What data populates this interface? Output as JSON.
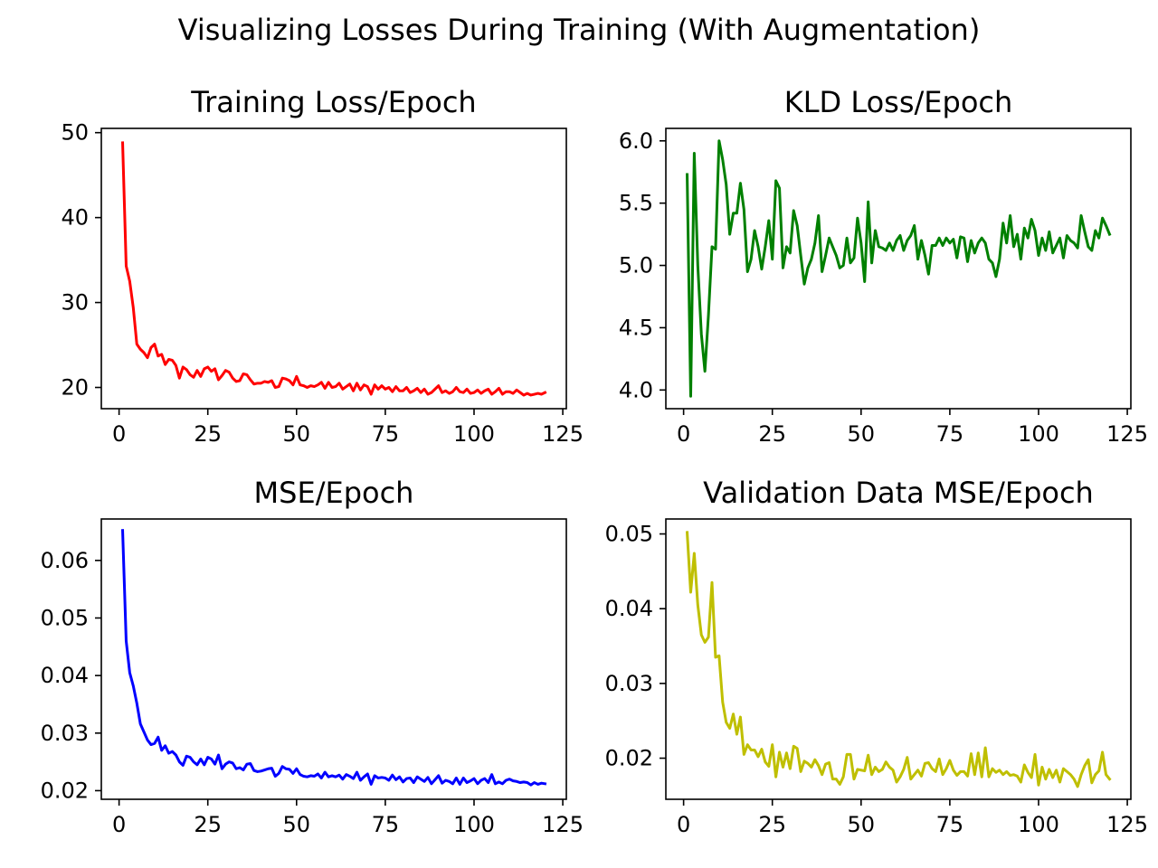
{
  "figure_title": "Visualizing Losses During Training (With Augmentation)",
  "chart_data": [
    {
      "type": "line",
      "title": "Training Loss/Epoch",
      "xlabel": "",
      "ylabel": "",
      "color": "#ff0000",
      "xlim": [
        -5,
        126
      ],
      "ylim": [
        17.5,
        50.5
      ],
      "xticks": [
        0,
        25,
        50,
        75,
        100,
        125
      ],
      "xtick_labels": [
        "0",
        "25",
        "50",
        "75",
        "100",
        "125"
      ],
      "yticks": [
        20,
        30,
        40,
        50
      ],
      "ytick_labels": [
        "20",
        "30",
        "40",
        "50"
      ],
      "grid": false,
      "series": [
        {
          "x": [
            1,
            2,
            3,
            4,
            5,
            6,
            7,
            8,
            9,
            10,
            11,
            12,
            13,
            14,
            15,
            16,
            17,
            18,
            19,
            20,
            21,
            22,
            23,
            24,
            25,
            26,
            27,
            28,
            29,
            30,
            31,
            32,
            33,
            34,
            35,
            36,
            37,
            38,
            39,
            40,
            41,
            42,
            43,
            44,
            45,
            46,
            47,
            48,
            49,
            50,
            51,
            52,
            53,
            54,
            55,
            56,
            57,
            58,
            59,
            60,
            61,
            62,
            63,
            64,
            65,
            66,
            67,
            68,
            69,
            70,
            71,
            72,
            73,
            74,
            75,
            76,
            77,
            78,
            79,
            80,
            81,
            82,
            83,
            84,
            85,
            86,
            87,
            88,
            89,
            90,
            91,
            92,
            93,
            94,
            95,
            96,
            97,
            98,
            99,
            100,
            101,
            102,
            103,
            104,
            105,
            106,
            107,
            108,
            109,
            110,
            111,
            112,
            113,
            114,
            115,
            116,
            117,
            118,
            119,
            120
          ],
          "y": [
            48.8,
            34.3,
            32.5,
            29.4,
            25.1,
            24.5,
            24.1,
            23.5,
            24.7,
            25.1,
            23.7,
            23.9,
            22.7,
            23.3,
            23.2,
            22.6,
            21.1,
            22.4,
            22.1,
            21.5,
            21.2,
            22.0,
            21.3,
            22.2,
            22.4,
            21.9,
            22.2,
            20.9,
            21.4,
            22.0,
            21.8,
            21.1,
            20.7,
            20.8,
            21.6,
            21.5,
            20.9,
            20.4,
            20.5,
            20.5,
            20.7,
            20.6,
            20.8,
            20.0,
            20.1,
            21.1,
            21.0,
            20.8,
            20.3,
            21.3,
            20.3,
            20.2,
            20.0,
            20.2,
            20.1,
            20.3,
            20.6,
            19.9,
            20.6,
            20.0,
            20.1,
            20.5,
            19.8,
            20.1,
            20.4,
            19.6,
            20.5,
            19.7,
            20.3,
            20.1,
            19.2,
            20.3,
            19.8,
            20.2,
            19.8,
            20.0,
            19.5,
            20.1,
            19.6,
            19.6,
            20.0,
            19.4,
            19.6,
            19.9,
            19.4,
            19.8,
            19.2,
            19.4,
            19.8,
            20.2,
            19.4,
            19.6,
            19.3,
            19.5,
            20.0,
            19.5,
            19.4,
            19.8,
            19.3,
            19.4,
            19.7,
            19.3,
            19.6,
            19.8,
            19.2,
            19.5,
            19.9,
            19.2,
            19.5,
            19.5,
            19.3,
            19.7,
            19.4,
            19.1,
            19.3,
            19.1,
            19.2,
            19.3,
            19.2,
            19.4
          ]
        }
      ]
    },
    {
      "type": "line",
      "title": "KLD Loss/Epoch",
      "xlabel": "",
      "ylabel": "",
      "color": "#008000",
      "xlim": [
        -5,
        126
      ],
      "ylim": [
        3.85,
        6.1
      ],
      "xticks": [
        0,
        25,
        50,
        75,
        100,
        125
      ],
      "xtick_labels": [
        "0",
        "25",
        "50",
        "75",
        "100",
        "125"
      ],
      "yticks": [
        4.0,
        4.5,
        5.0,
        5.5,
        6.0
      ],
      "ytick_labels": [
        "4.0",
        "4.5",
        "5.0",
        "5.5",
        "6.0"
      ],
      "grid": false,
      "series": [
        {
          "x": [
            1,
            2,
            3,
            4,
            5,
            6,
            7,
            8,
            9,
            10,
            11,
            12,
            13,
            14,
            15,
            16,
            17,
            18,
            19,
            20,
            21,
            22,
            23,
            24,
            25,
            26,
            27,
            28,
            29,
            30,
            31,
            32,
            33,
            34,
            35,
            36,
            37,
            38,
            39,
            40,
            41,
            42,
            43,
            44,
            45,
            46,
            47,
            48,
            49,
            50,
            51,
            52,
            53,
            54,
            55,
            56,
            57,
            58,
            59,
            60,
            61,
            62,
            63,
            64,
            65,
            66,
            67,
            68,
            69,
            70,
            71,
            72,
            73,
            74,
            75,
            76,
            77,
            78,
            79,
            80,
            81,
            82,
            83,
            84,
            85,
            86,
            87,
            88,
            89,
            90,
            91,
            92,
            93,
            94,
            95,
            96,
            97,
            98,
            99,
            100,
            101,
            102,
            103,
            104,
            105,
            106,
            107,
            108,
            109,
            110,
            111,
            112,
            113,
            114,
            115,
            116,
            117,
            118,
            119,
            120
          ],
          "y": [
            5.73,
            3.95,
            5.9,
            5.0,
            4.45,
            4.15,
            4.6,
            5.15,
            5.13,
            6.0,
            5.85,
            5.65,
            5.25,
            5.42,
            5.42,
            5.66,
            5.45,
            4.95,
            5.05,
            5.28,
            5.15,
            4.97,
            5.15,
            5.36,
            5.05,
            5.68,
            5.62,
            4.98,
            5.15,
            5.1,
            5.44,
            5.32,
            5.08,
            4.85,
            4.98,
            5.05,
            5.18,
            5.4,
            4.95,
            5.08,
            5.22,
            5.15,
            5.08,
            4.98,
            5.0,
            5.22,
            5.02,
            5.06,
            5.38,
            5.18,
            4.87,
            5.51,
            5.02,
            5.28,
            5.15,
            5.14,
            5.12,
            5.18,
            5.12,
            5.2,
            5.24,
            5.12,
            5.2,
            5.24,
            5.32,
            5.05,
            5.2,
            5.08,
            4.93,
            5.16,
            5.16,
            5.22,
            5.16,
            5.22,
            5.18,
            5.21,
            5.06,
            5.23,
            5.22,
            5.03,
            5.2,
            5.1,
            5.18,
            5.22,
            5.18,
            5.05,
            5.02,
            4.91,
            5.05,
            5.34,
            5.18,
            5.4,
            5.15,
            5.25,
            5.05,
            5.3,
            5.22,
            5.37,
            5.28,
            5.08,
            5.22,
            5.12,
            5.27,
            5.1,
            5.16,
            5.22,
            5.06,
            5.24,
            5.2,
            5.18,
            5.14,
            5.4,
            5.27,
            5.15,
            5.12,
            5.28,
            5.22,
            5.38,
            5.32,
            5.25
          ]
        }
      ]
    },
    {
      "type": "line",
      "title": "MSE/Epoch",
      "xlabel": "",
      "ylabel": "",
      "color": "#0000ff",
      "xlim": [
        -5,
        126
      ],
      "ylim": [
        0.0185,
        0.0672
      ],
      "xticks": [
        0,
        25,
        50,
        75,
        100,
        125
      ],
      "xtick_labels": [
        "0",
        "25",
        "50",
        "75",
        "100",
        "125"
      ],
      "yticks": [
        0.02,
        0.03,
        0.04,
        0.05,
        0.06
      ],
      "ytick_labels": [
        "0.02",
        "0.03",
        "0.04",
        "0.05",
        "0.06"
      ],
      "grid": false,
      "series": [
        {
          "x": [
            1,
            2,
            3,
            4,
            5,
            6,
            7,
            8,
            9,
            10,
            11,
            12,
            13,
            14,
            15,
            16,
            17,
            18,
            19,
            20,
            21,
            22,
            23,
            24,
            25,
            26,
            27,
            28,
            29,
            30,
            31,
            32,
            33,
            34,
            35,
            36,
            37,
            38,
            39,
            40,
            41,
            42,
            43,
            44,
            45,
            46,
            47,
            48,
            49,
            50,
            51,
            52,
            53,
            54,
            55,
            56,
            57,
            58,
            59,
            60,
            61,
            62,
            63,
            64,
            65,
            66,
            67,
            68,
            69,
            70,
            71,
            72,
            73,
            74,
            75,
            76,
            77,
            78,
            79,
            80,
            81,
            82,
            83,
            84,
            85,
            86,
            87,
            88,
            89,
            90,
            91,
            92,
            93,
            94,
            95,
            96,
            97,
            98,
            99,
            100,
            101,
            102,
            103,
            104,
            105,
            106,
            107,
            108,
            109,
            110,
            111,
            112,
            113,
            114,
            115,
            116,
            117,
            118,
            119,
            120
          ],
          "y": [
            0.0652,
            0.046,
            0.0405,
            0.0382,
            0.0352,
            0.0316,
            0.0302,
            0.0288,
            0.028,
            0.0282,
            0.0293,
            0.027,
            0.0278,
            0.0265,
            0.0268,
            0.0262,
            0.025,
            0.0244,
            0.026,
            0.0258,
            0.025,
            0.0245,
            0.0255,
            0.0245,
            0.0258,
            0.0255,
            0.0246,
            0.0262,
            0.0238,
            0.0246,
            0.025,
            0.0248,
            0.0238,
            0.024,
            0.0236,
            0.0246,
            0.0247,
            0.0235,
            0.0233,
            0.0234,
            0.0236,
            0.0238,
            0.0239,
            0.0225,
            0.023,
            0.0242,
            0.0238,
            0.0237,
            0.023,
            0.0238,
            0.0228,
            0.0225,
            0.0224,
            0.0226,
            0.0225,
            0.0229,
            0.0222,
            0.0232,
            0.0224,
            0.0226,
            0.0224,
            0.0227,
            0.022,
            0.0228,
            0.0225,
            0.0221,
            0.0232,
            0.0218,
            0.0224,
            0.0229,
            0.0211,
            0.0226,
            0.0222,
            0.0223,
            0.0222,
            0.0218,
            0.0227,
            0.0219,
            0.0224,
            0.0215,
            0.0221,
            0.0222,
            0.0214,
            0.0224,
            0.022,
            0.0216,
            0.0223,
            0.0212,
            0.0219,
            0.0226,
            0.0213,
            0.0218,
            0.0216,
            0.0212,
            0.0222,
            0.0211,
            0.0222,
            0.0214,
            0.0217,
            0.0221,
            0.0212,
            0.0218,
            0.0221,
            0.0214,
            0.0228,
            0.0212,
            0.0215,
            0.0212,
            0.0218,
            0.022,
            0.0217,
            0.0216,
            0.0214,
            0.0215,
            0.0214,
            0.021,
            0.0214,
            0.0211,
            0.0213,
            0.0212
          ]
        }
      ]
    },
    {
      "type": "line",
      "title": "Validation Data MSE/Epoch",
      "xlabel": "",
      "ylabel": "",
      "color": "#bfbf00",
      "xlim": [
        -5,
        126
      ],
      "ylim": [
        0.0145,
        0.052
      ],
      "xticks": [
        0,
        25,
        50,
        75,
        100,
        125
      ],
      "xtick_labels": [
        "0",
        "25",
        "50",
        "75",
        "100",
        "125"
      ],
      "yticks": [
        0.02,
        0.03,
        0.04,
        0.05
      ],
      "ytick_labels": [
        "0.02",
        "0.03",
        "0.04",
        "0.05"
      ],
      "grid": false,
      "series": [
        {
          "x": [
            1,
            2,
            3,
            4,
            5,
            6,
            7,
            8,
            9,
            10,
            11,
            12,
            13,
            14,
            15,
            16,
            17,
            18,
            19,
            20,
            21,
            22,
            23,
            24,
            25,
            26,
            27,
            28,
            29,
            30,
            31,
            32,
            33,
            34,
            35,
            36,
            37,
            38,
            39,
            40,
            41,
            42,
            43,
            44,
            45,
            46,
            47,
            48,
            49,
            50,
            51,
            52,
            53,
            54,
            55,
            56,
            57,
            58,
            59,
            60,
            61,
            62,
            63,
            64,
            65,
            66,
            67,
            68,
            69,
            70,
            71,
            72,
            73,
            74,
            75,
            76,
            77,
            78,
            79,
            80,
            81,
            82,
            83,
            84,
            85,
            86,
            87,
            88,
            89,
            90,
            91,
            92,
            93,
            94,
            95,
            96,
            97,
            98,
            99,
            100,
            101,
            102,
            103,
            104,
            105,
            106,
            107,
            108,
            109,
            110,
            111,
            112,
            113,
            114,
            115,
            116,
            117,
            118,
            119,
            120
          ],
          "y": [
            0.0502,
            0.0422,
            0.0474,
            0.0405,
            0.0365,
            0.0355,
            0.0362,
            0.0435,
            0.0335,
            0.0337,
            0.0275,
            0.0248,
            0.024,
            0.0259,
            0.0232,
            0.0255,
            0.0205,
            0.0218,
            0.0211,
            0.0211,
            0.0202,
            0.0212,
            0.0195,
            0.0189,
            0.0218,
            0.0175,
            0.0208,
            0.0188,
            0.0207,
            0.0186,
            0.0216,
            0.0213,
            0.0182,
            0.0196,
            0.0193,
            0.0188,
            0.0198,
            0.019,
            0.0178,
            0.0192,
            0.0194,
            0.0172,
            0.0172,
            0.0165,
            0.0175,
            0.0205,
            0.0205,
            0.0172,
            0.0185,
            0.0184,
            0.0183,
            0.0204,
            0.0178,
            0.0188,
            0.0182,
            0.0185,
            0.0195,
            0.0188,
            0.0184,
            0.0168,
            0.0175,
            0.0185,
            0.0201,
            0.0172,
            0.0178,
            0.0184,
            0.0176,
            0.0193,
            0.0194,
            0.0186,
            0.0182,
            0.0199,
            0.0178,
            0.0186,
            0.0197,
            0.0184,
            0.0177,
            0.0182,
            0.0182,
            0.0176,
            0.0206,
            0.0178,
            0.0207,
            0.0175,
            0.0214,
            0.0175,
            0.0186,
            0.0181,
            0.0184,
            0.0178,
            0.0182,
            0.0177,
            0.0178,
            0.0176,
            0.0168,
            0.0191,
            0.0181,
            0.0174,
            0.0205,
            0.0164,
            0.0188,
            0.0172,
            0.0185,
            0.0174,
            0.0184,
            0.0168,
            0.0186,
            0.0182,
            0.0178,
            0.0172,
            0.0162,
            0.0178,
            0.019,
            0.0198,
            0.0167,
            0.0178,
            0.0183,
            0.0208,
            0.0178,
            0.0172
          ]
        }
      ]
    }
  ]
}
